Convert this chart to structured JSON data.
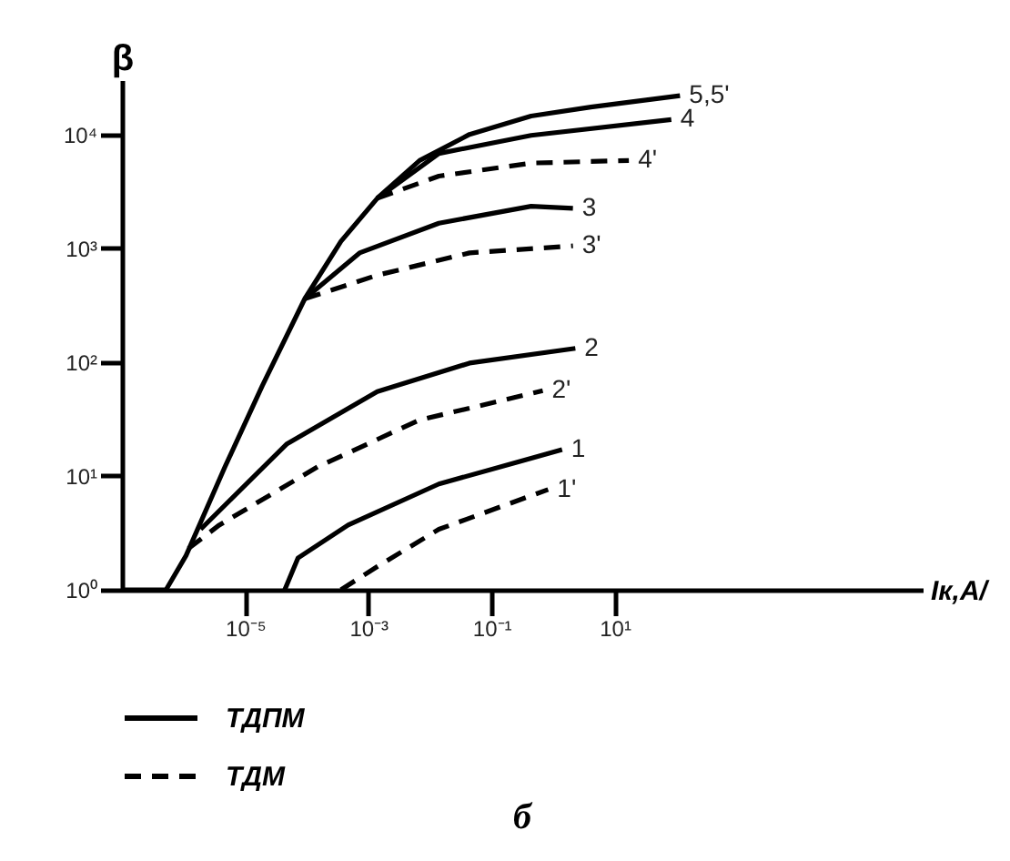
{
  "chart_data": {
    "type": "line",
    "xlabel": "Iк,A/",
    "ylabel": "β",
    "log": "xy",
    "grid": false,
    "marker": "none",
    "xlim": [
      1e-07,
      1000000.0
    ],
    "ylim": [
      1,
      30000
    ],
    "xticks": [
      {
        "value": 1e-05,
        "label": "10⁻⁵"
      },
      {
        "value": 0.001,
        "label": "10⁻³"
      },
      {
        "value": 0.1,
        "label": "10⁻¹"
      },
      {
        "value": 10,
        "label": "10¹"
      }
    ],
    "yticks": [
      {
        "value": 1,
        "label": "10⁰"
      },
      {
        "value": 10,
        "label": "10¹"
      },
      {
        "value": 100,
        "label": "10²"
      },
      {
        "value": 1000,
        "label": "10³"
      },
      {
        "value": 10000,
        "label": "10⁴"
      }
    ],
    "series": [
      {
        "name": "5,5'",
        "color": "#000000",
        "line_style": "solid",
        "x": [
          1e-07,
          5.2e-07,
          1.1e-06,
          4.7e-06,
          1.9e-05,
          9.3e-05,
          0.00036,
          0.0014,
          0.0068,
          0.044,
          0.44,
          4.1,
          115
        ],
        "values": [
          1,
          1,
          2,
          12,
          62,
          360,
          1150,
          2750,
          5900,
          10000,
          14500,
          17400,
          21900
        ]
      },
      {
        "name": "4",
        "color": "#000000",
        "line_style": "solid",
        "x": [
          0.0014,
          0.014,
          0.44,
          83
        ],
        "values": [
          2750,
          6800,
          9800,
          13500
        ]
      },
      {
        "name": "4'",
        "color": "#000000",
        "line_style": "dashed",
        "x": [
          0.0014,
          0.014,
          0.44,
          17
        ],
        "values": [
          2750,
          4300,
          5600,
          5900
        ]
      },
      {
        "name": "3",
        "color": "#000000",
        "line_style": "solid",
        "x": [
          9.3e-05,
          0.00072,
          0.014,
          0.44,
          2.1
        ],
        "values": [
          360,
          910,
          1660,
          2340,
          2240
        ]
      },
      {
        "name": "3'",
        "color": "#000000",
        "line_style": "dashed",
        "x": [
          9.3e-05,
          0.0014,
          0.044,
          2.1
        ],
        "values": [
          360,
          580,
          910,
          1050
        ]
      },
      {
        "name": "2",
        "color": "#000000",
        "line_style": "solid",
        "x": [
          1.9e-06,
          4.7e-05,
          0.0014,
          0.044,
          2.3
        ],
        "values": [
          3.4,
          19,
          55,
          98,
          132
        ]
      },
      {
        "name": "2'",
        "color": "#000000",
        "line_style": "dashed",
        "x": [
          1.2e-06,
          3.8e-06,
          0.00015,
          0.0068,
          0.68
        ],
        "values": [
          2.3,
          3.7,
          12,
          31,
          56
        ]
      },
      {
        "name": "1",
        "color": "#000000",
        "line_style": "solid",
        "x": [
          4.4e-05,
          7.2e-05,
          0.00047,
          0.014,
          1.4
        ],
        "values": [
          1,
          1.9,
          3.7,
          8.5,
          17
        ]
      },
      {
        "name": "1'",
        "color": "#000000",
        "line_style": "dashed",
        "x": [
          0.00036,
          0.0014,
          0.014,
          0.83
        ],
        "values": [
          1,
          1.6,
          3.4,
          7.6
        ]
      }
    ],
    "annotations": [
      "ТДПМ",
      "ТДМ",
      "б"
    ]
  }
}
